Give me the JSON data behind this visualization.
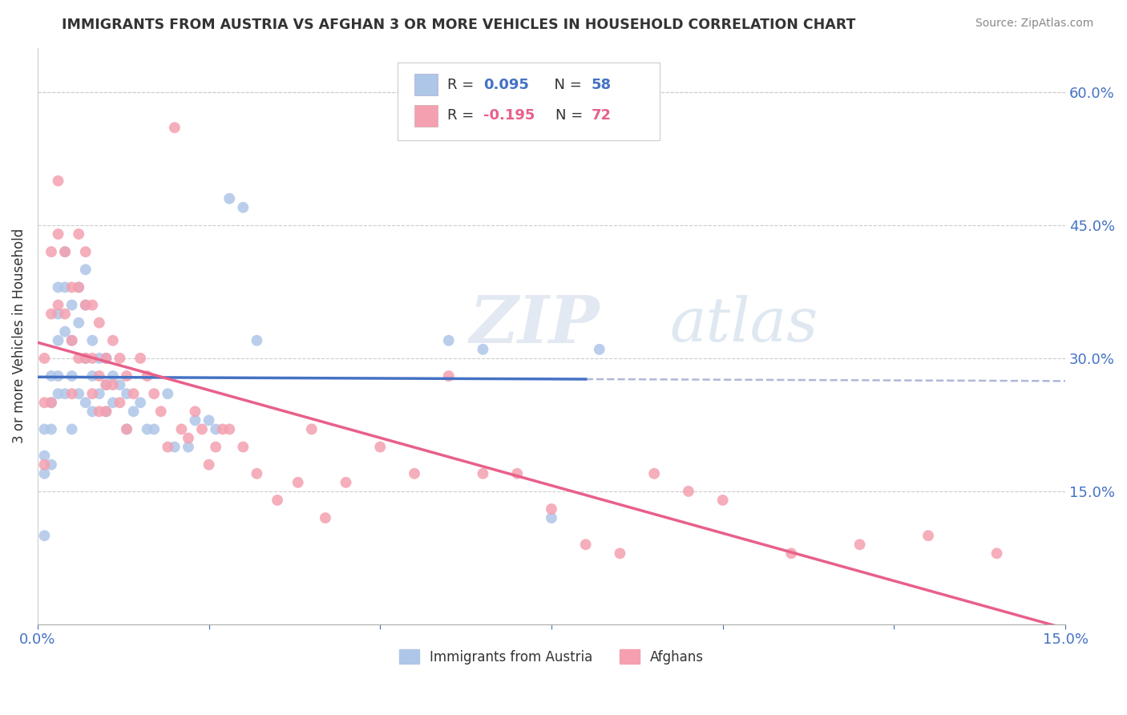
{
  "title": "IMMIGRANTS FROM AUSTRIA VS AFGHAN 3 OR MORE VEHICLES IN HOUSEHOLD CORRELATION CHART",
  "source": "Source: ZipAtlas.com",
  "ylabel": "3 or more Vehicles in Household",
  "xlim": [
    0.0,
    0.15
  ],
  "ylim": [
    0.0,
    0.65
  ],
  "yticks_right": [
    0.15,
    0.3,
    0.45,
    0.6
  ],
  "ytick_right_labels": [
    "15.0%",
    "30.0%",
    "45.0%",
    "60.0%"
  ],
  "R_austria": 0.095,
  "N_austria": 58,
  "R_afghan": -0.195,
  "N_afghan": 72,
  "austria_color": "#aec6e8",
  "afghan_color": "#f4a0b0",
  "austria_line_color": "#4472c4",
  "afghan_line_color": "#e8608a",
  "austria_dashed_color": "#b0b8d8",
  "legend1_label": "Immigrants from Austria",
  "legend2_label": "Afghans",
  "watermark": "ZIPatlas",
  "austria_x": [
    0.001,
    0.001,
    0.001,
    0.001,
    0.002,
    0.002,
    0.002,
    0.002,
    0.003,
    0.003,
    0.003,
    0.003,
    0.003,
    0.004,
    0.004,
    0.004,
    0.004,
    0.005,
    0.005,
    0.005,
    0.005,
    0.006,
    0.006,
    0.006,
    0.007,
    0.007,
    0.007,
    0.007,
    0.008,
    0.008,
    0.008,
    0.009,
    0.009,
    0.01,
    0.01,
    0.01,
    0.011,
    0.011,
    0.012,
    0.013,
    0.013,
    0.014,
    0.015,
    0.016,
    0.017,
    0.019,
    0.02,
    0.022,
    0.023,
    0.025,
    0.026,
    0.028,
    0.03,
    0.032,
    0.06,
    0.065,
    0.075,
    0.082
  ],
  "austria_y": [
    0.22,
    0.19,
    0.17,
    0.1,
    0.28,
    0.25,
    0.22,
    0.18,
    0.38,
    0.35,
    0.32,
    0.28,
    0.26,
    0.42,
    0.38,
    0.33,
    0.26,
    0.36,
    0.32,
    0.28,
    0.22,
    0.38,
    0.34,
    0.26,
    0.4,
    0.36,
    0.3,
    0.25,
    0.32,
    0.28,
    0.24,
    0.3,
    0.26,
    0.3,
    0.27,
    0.24,
    0.28,
    0.25,
    0.27,
    0.26,
    0.22,
    0.24,
    0.25,
    0.22,
    0.22,
    0.26,
    0.2,
    0.2,
    0.23,
    0.23,
    0.22,
    0.48,
    0.47,
    0.32,
    0.32,
    0.31,
    0.12,
    0.31
  ],
  "afghan_x": [
    0.001,
    0.001,
    0.001,
    0.002,
    0.002,
    0.002,
    0.003,
    0.003,
    0.003,
    0.004,
    0.004,
    0.005,
    0.005,
    0.005,
    0.006,
    0.006,
    0.006,
    0.007,
    0.007,
    0.007,
    0.008,
    0.008,
    0.008,
    0.009,
    0.009,
    0.009,
    0.01,
    0.01,
    0.01,
    0.011,
    0.011,
    0.012,
    0.012,
    0.013,
    0.013,
    0.014,
    0.015,
    0.016,
    0.017,
    0.018,
    0.019,
    0.02,
    0.021,
    0.022,
    0.023,
    0.024,
    0.025,
    0.026,
    0.027,
    0.028,
    0.03,
    0.032,
    0.035,
    0.038,
    0.04,
    0.042,
    0.045,
    0.05,
    0.055,
    0.06,
    0.065,
    0.07,
    0.075,
    0.08,
    0.085,
    0.09,
    0.095,
    0.1,
    0.11,
    0.12,
    0.13,
    0.14
  ],
  "afghan_y": [
    0.3,
    0.25,
    0.18,
    0.42,
    0.35,
    0.25,
    0.5,
    0.44,
    0.36,
    0.42,
    0.35,
    0.38,
    0.32,
    0.26,
    0.44,
    0.38,
    0.3,
    0.42,
    0.36,
    0.3,
    0.36,
    0.3,
    0.26,
    0.34,
    0.28,
    0.24,
    0.3,
    0.27,
    0.24,
    0.32,
    0.27,
    0.3,
    0.25,
    0.28,
    0.22,
    0.26,
    0.3,
    0.28,
    0.26,
    0.24,
    0.2,
    0.56,
    0.22,
    0.21,
    0.24,
    0.22,
    0.18,
    0.2,
    0.22,
    0.22,
    0.2,
    0.17,
    0.14,
    0.16,
    0.22,
    0.12,
    0.16,
    0.2,
    0.17,
    0.28,
    0.17,
    0.17,
    0.13,
    0.09,
    0.08,
    0.17,
    0.15,
    0.14,
    0.08,
    0.09,
    0.1,
    0.08
  ]
}
